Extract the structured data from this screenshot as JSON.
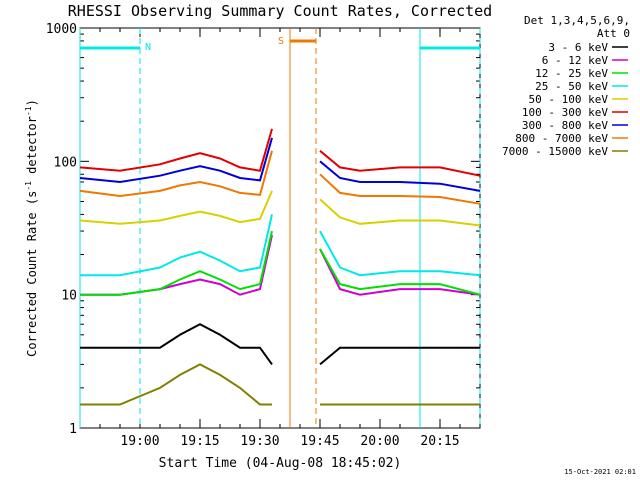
{
  "chart_data": {
    "type": "line",
    "title": "RHESSI Observing Summary Count Rates, Corrected",
    "xlabel": "Start Time (04-Aug-08 18:45:02)",
    "ylabel_main": "Corrected Count Rate (s",
    "ylabel_sup1": "-1",
    "ylabel_mid": " detector",
    "ylabel_sup2": "-1",
    "ylabel_end": ")",
    "y_scale": "log",
    "ylim": [
      1,
      1000
    ],
    "y_ticks": [
      {
        "value": 1,
        "label": "1"
      },
      {
        "value": 10,
        "label": "10"
      },
      {
        "value": 100,
        "label": "100"
      },
      {
        "value": 1000,
        "label": "1000"
      }
    ],
    "xlim_minutes": [
      0,
      100
    ],
    "x_ticks": [
      {
        "minutes": 15,
        "label": "19:00"
      },
      {
        "minutes": 30,
        "label": "19:15"
      },
      {
        "minutes": 45,
        "label": "19:30"
      },
      {
        "minutes": 60,
        "label": "19:45"
      },
      {
        "minutes": 75,
        "label": "20:00"
      },
      {
        "minutes": 90,
        "label": "20:15"
      }
    ],
    "legend": {
      "position": "right",
      "header": [
        "Det 1,3,4,5,6,9,",
        "Att 0"
      ],
      "entries": [
        {
          "label": "3 - 6 keV",
          "color": "#000000"
        },
        {
          "label": "6 - 12 keV",
          "color": "#d000d0"
        },
        {
          "label": "12 - 25 keV",
          "color": "#00e000"
        },
        {
          "label": "25 - 50 keV",
          "color": "#00e8e8"
        },
        {
          "label": "50 - 100 keV",
          "color": "#d8d000"
        },
        {
          "label": "100 - 300 keV",
          "color": "#e00000"
        },
        {
          "label": "300 - 800 keV",
          "color": "#0000d8"
        },
        {
          "label": "800 - 7000 keV",
          "color": "#f07800"
        },
        {
          "label": "7000 - 15000 keV",
          "color": "#808000"
        }
      ]
    },
    "series": [
      {
        "name": "3 - 6 keV",
        "color": "#000000",
        "x": [
          0,
          10,
          20,
          25,
          30,
          35,
          40,
          45,
          48,
          60,
          65,
          70,
          80,
          90,
          100
        ],
        "y": [
          4,
          4,
          4,
          5,
          6,
          5,
          4,
          4,
          3,
          3,
          4,
          4,
          4,
          4,
          4
        ]
      },
      {
        "name": "6 - 12 keV",
        "color": "#d000d0",
        "x": [
          0,
          10,
          20,
          25,
          30,
          35,
          40,
          45,
          48,
          60,
          65,
          70,
          80,
          90,
          100
        ],
        "y": [
          10,
          10,
          11,
          12,
          13,
          12,
          10,
          11,
          28,
          22,
          11,
          10,
          11,
          11,
          10
        ]
      },
      {
        "name": "12 - 25 keV",
        "color": "#00e000",
        "x": [
          0,
          10,
          20,
          25,
          30,
          35,
          40,
          45,
          48,
          60,
          65,
          70,
          80,
          90,
          100
        ],
        "y": [
          10,
          10,
          11,
          13,
          15,
          13,
          11,
          12,
          30,
          22,
          12,
          11,
          12,
          12,
          10
        ]
      },
      {
        "name": "25 - 50 keV",
        "color": "#00e8e8",
        "x": [
          0,
          10,
          20,
          25,
          30,
          35,
          40,
          45,
          48,
          60,
          65,
          70,
          80,
          90,
          100
        ],
        "y": [
          14,
          14,
          16,
          19,
          21,
          18,
          15,
          16,
          40,
          30,
          16,
          14,
          15,
          15,
          14
        ]
      },
      {
        "name": "50 - 100 keV",
        "color": "#d8d000",
        "x": [
          0,
          10,
          20,
          25,
          30,
          35,
          40,
          45,
          48,
          60,
          65,
          70,
          80,
          90,
          100
        ],
        "y": [
          36,
          34,
          36,
          39,
          42,
          39,
          35,
          37,
          60,
          52,
          38,
          34,
          36,
          36,
          33
        ]
      },
      {
        "name": "100 - 300 keV",
        "color": "#e00000",
        "x": [
          0,
          10,
          20,
          25,
          30,
          35,
          40,
          45,
          48,
          60,
          65,
          70,
          80,
          90,
          100
        ],
        "y": [
          90,
          85,
          95,
          105,
          115,
          105,
          90,
          85,
          175,
          120,
          90,
          85,
          90,
          90,
          78
        ]
      },
      {
        "name": "300 - 800 keV",
        "color": "#0000d8",
        "x": [
          0,
          10,
          20,
          25,
          30,
          35,
          40,
          45,
          48,
          60,
          65,
          70,
          80,
          90,
          100
        ],
        "y": [
          75,
          70,
          78,
          85,
          92,
          85,
          75,
          72,
          150,
          100,
          75,
          70,
          70,
          68,
          60
        ]
      },
      {
        "name": "800 - 7000 keV",
        "color": "#f07800",
        "x": [
          0,
          10,
          20,
          25,
          30,
          35,
          40,
          45,
          48,
          60,
          65,
          70,
          80,
          90,
          100
        ],
        "y": [
          60,
          55,
          60,
          66,
          70,
          65,
          58,
          56,
          120,
          80,
          58,
          55,
          55,
          54,
          48
        ]
      },
      {
        "name": "7000 - 15000 keV",
        "color": "#808000",
        "x": [
          0,
          10,
          20,
          25,
          30,
          35,
          40,
          45,
          48,
          60,
          65,
          70,
          80,
          90,
          100
        ],
        "y": [
          1.5,
          1.5,
          2,
          2.5,
          3,
          2.5,
          2,
          1.5,
          1.5,
          1.5,
          1.5,
          1.5,
          1.5,
          1.5,
          1.5
        ]
      }
    ],
    "annotations": [
      {
        "label": "N",
        "color": "#00e8e8"
      },
      {
        "label": "S",
        "color": "#f07800"
      }
    ],
    "timestamp": "15-Oct-2021 02:01"
  }
}
